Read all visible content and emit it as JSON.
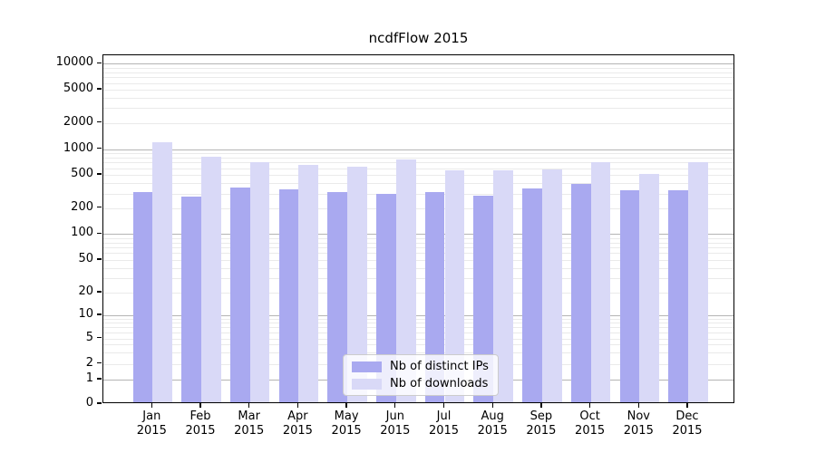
{
  "chart_data": {
    "type": "bar",
    "title": "ncdfFlow 2015",
    "xlabel": "",
    "ylabel": "",
    "scale": "symlog",
    "grid": true,
    "legend_position": "lower center",
    "ylim": [
      0,
      12000
    ],
    "y_ticks": [
      0,
      1,
      2,
      5,
      10,
      20,
      50,
      100,
      200,
      500,
      1000,
      2000,
      5000,
      10000
    ],
    "categories": [
      "Jan",
      "Feb",
      "Mar",
      "Apr",
      "May",
      "Jun",
      "Jul",
      "Aug",
      "Sep",
      "Oct",
      "Nov",
      "Dec"
    ],
    "year": "2015",
    "series": [
      {
        "name": "Nb of distinct IPs",
        "color": "#a9a9f0",
        "values": [
          300,
          260,
          340,
          320,
          300,
          285,
          298,
          270,
          330,
          375,
          315,
          310
        ]
      },
      {
        "name": "Nb of downloads",
        "color": "#d9d9f7",
        "values": [
          1150,
          780,
          675,
          630,
          600,
          720,
          545,
          535,
          555,
          665,
          490,
          665
        ]
      }
    ]
  }
}
